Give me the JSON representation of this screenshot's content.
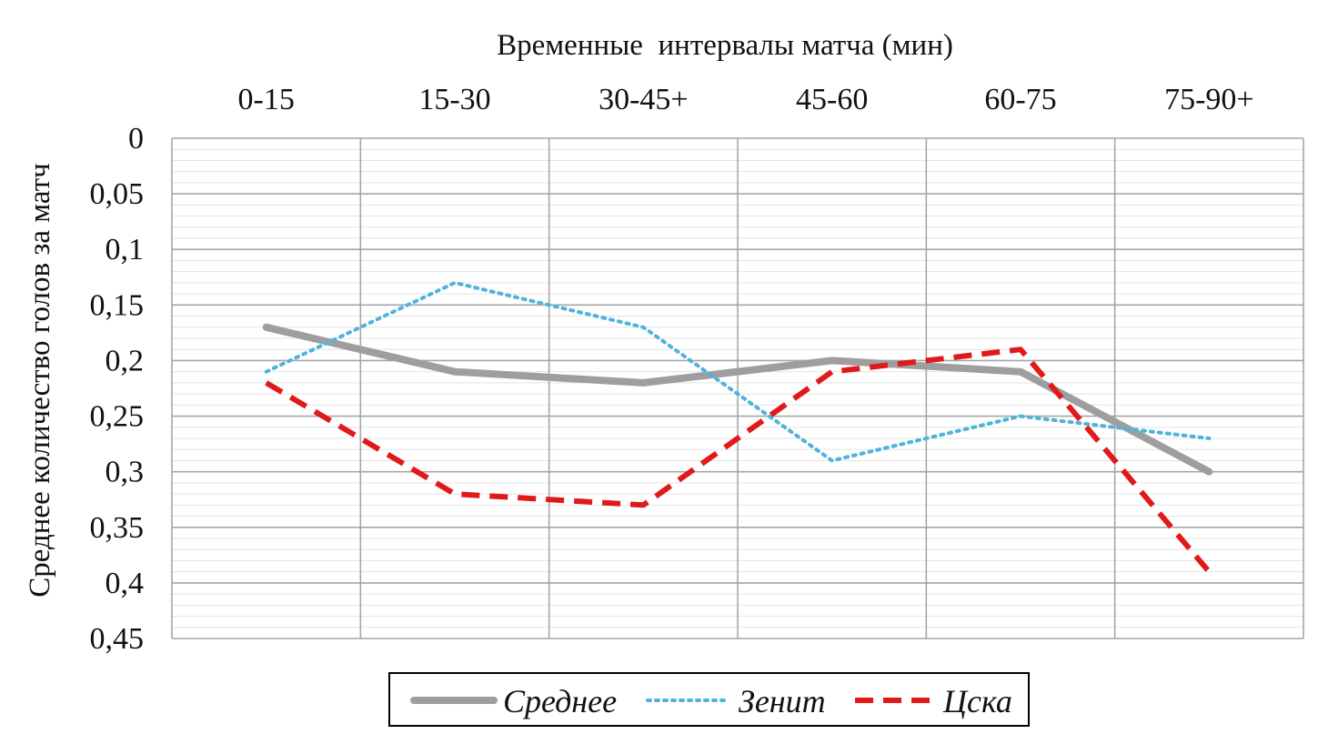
{
  "chart_data": {
    "type": "line",
    "xlabel": "Временные  интервалы матча (мин)",
    "ylabel": "Среднее количество голов за матч",
    "categories": [
      "0-15",
      "15-30",
      "30-45+",
      "45-60",
      "60-75",
      "75-90+"
    ],
    "y_ticks": [
      "0",
      "0,05",
      "0,1",
      "0,15",
      "0,2",
      "0,25",
      "0,3",
      "0,35",
      "0,4",
      "0,45"
    ],
    "ylim": [
      0,
      0.45
    ],
    "y_inverted": true,
    "x_axis_position": "top",
    "grid": true,
    "legend_position": "bottom",
    "series": [
      {
        "name": "Среднее",
        "color": "#9e9e9e",
        "style": "solid",
        "values": [
          0.17,
          0.21,
          0.22,
          0.2,
          0.21,
          0.3
        ]
      },
      {
        "name": "Зенит",
        "color": "#4fb3dc",
        "style": "dotted",
        "values": [
          0.21,
          0.13,
          0.17,
          0.29,
          0.25,
          0.27
        ]
      },
      {
        "name": "Цска",
        "color": "#e0191b",
        "style": "dashed",
        "values": [
          0.22,
          0.32,
          0.33,
          0.21,
          0.19,
          0.39
        ]
      }
    ]
  }
}
